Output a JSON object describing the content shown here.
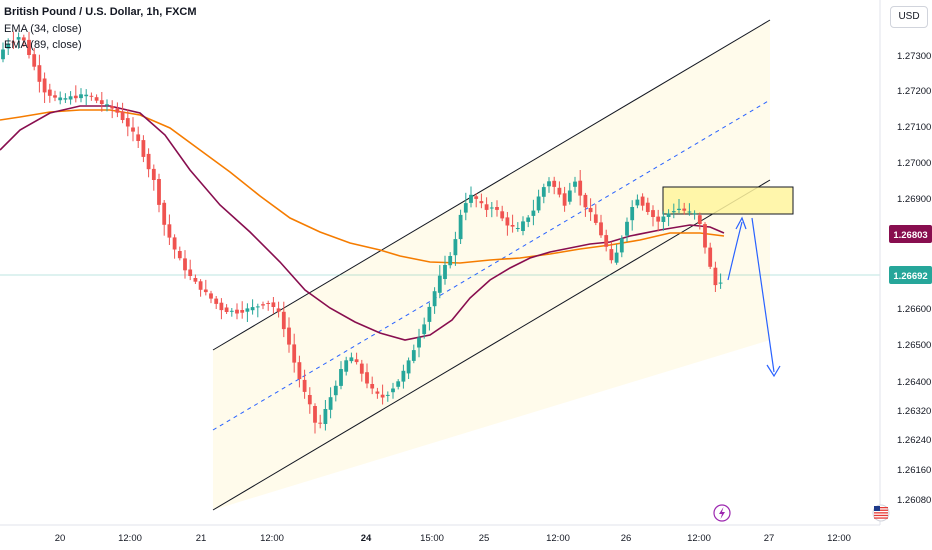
{
  "legend": {
    "symbol": "British Pound / U.S. Dollar, 1h, FXCM",
    "ema_fast": "EMA (34, close)",
    "ema_slow": "EMA (89, close)"
  },
  "currency_label": "USD",
  "colors": {
    "up": "#26a69a",
    "down": "#ef5350",
    "ema_fast": "#880e4f",
    "ema_slow": "#f57c00",
    "channel_fill": "#fffbeb",
    "zone_fill": "#fff59d",
    "projection": "#2962ff",
    "current_price_line": "#26a69a"
  },
  "icons": {
    "flash": "flash-icon",
    "flag": "us-flag-icon"
  },
  "chart_data": {
    "type": "candlestick",
    "y_axis": {
      "ticks": [
        "1.27300",
        "1.27200",
        "1.27100",
        "1.27000",
        "1.26900",
        "1.26600",
        "1.26500",
        "1.26400",
        "1.26320",
        "1.26240",
        "1.26160",
        "1.26080"
      ],
      "price_labels": [
        {
          "text": "1.26803",
          "color": "#880e4f"
        },
        {
          "text": "1.26692",
          "color": "#26a69a"
        }
      ]
    },
    "x_axis": {
      "ticks": [
        "20",
        "12:00",
        "21",
        "12:00",
        "24",
        "15:00",
        "25",
        "12:00",
        "26",
        "12:00",
        "27",
        "12:00"
      ],
      "bold_ticks": [
        "24"
      ]
    },
    "series": [
      {
        "name": "EMA (34, close)",
        "color": "#880e4f"
      },
      {
        "name": "EMA (89, close)",
        "color": "#f57c00"
      }
    ]
  }
}
